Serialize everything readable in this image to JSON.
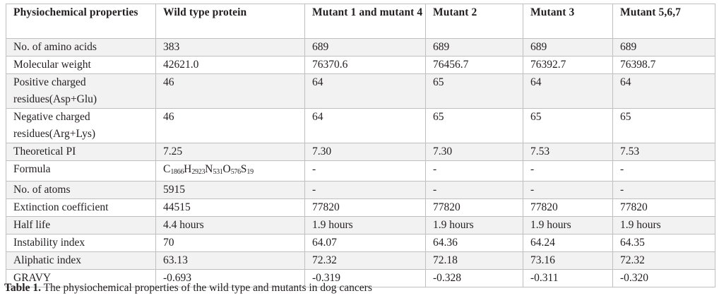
{
  "table": {
    "headers": [
      "Physiochemical properties",
      "Wild type protein",
      "Mutant 1 and mutant 4",
      "Mutant 2",
      "Mutant 3",
      "Mutant 5,6,7"
    ],
    "rows": [
      [
        "No. of amino acids",
        "383",
        "689",
        "689",
        "689",
        "689"
      ],
      [
        "Molecular weight",
        "42621.0",
        "76370.6",
        "76456.7",
        "76392.7",
        "76398.7"
      ],
      [
        "Positive charged residues(Asp+Glu)",
        "46",
        "64",
        "65",
        "64",
        "64"
      ],
      [
        "Negative charged residues(Arg+Lys)",
        "46",
        "64",
        "65",
        "65",
        "65"
      ],
      [
        "Theoretical PI",
        "7.25",
        "7.30",
        "7.30",
        "7.53",
        "7.53"
      ],
      [
        "Formula",
        "C1866H2923N531O576S19",
        "-",
        "-",
        "-",
        "-"
      ],
      [
        "No. of atoms",
        "5915",
        "-",
        "-",
        "-",
        "-"
      ],
      [
        "Extinction coefficient",
        "44515",
        "77820",
        "77820",
        "77820",
        "77820"
      ],
      [
        "Half life",
        "4.4 hours",
        "1.9 hours",
        "1.9 hours",
        "1.9 hours",
        "1.9 hours"
      ],
      [
        "Instability index",
        "70",
        "64.07",
        "64.36",
        "64.24",
        "64.35"
      ],
      [
        "Aliphatic index",
        "63.13",
        "72.32",
        "72.18",
        "73.16",
        "72.32"
      ],
      [
        "GRAVY",
        "-0.693",
        "-0.319",
        "-0.328",
        "-0.311",
        "-0.320"
      ]
    ],
    "formula_parts": [
      {
        "el": "C",
        "n": "1866"
      },
      {
        "el": "H",
        "n": "2923"
      },
      {
        "el": "N",
        "n": "531"
      },
      {
        "el": "O",
        "n": "576"
      },
      {
        "el": "S",
        "n": "19"
      }
    ]
  },
  "caption": {
    "label": "Table 1.",
    "text": " The physiochemical properties of the wild type and mutants in dog cancers"
  },
  "colors": {
    "text": "#231f20",
    "border": "#bfbfbf",
    "shade": "#f2f2f2"
  }
}
